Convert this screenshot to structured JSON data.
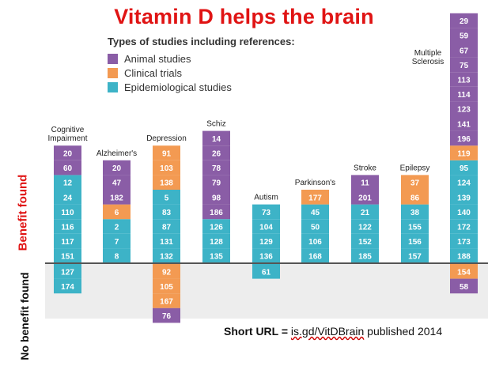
{
  "chart_data": {
    "type": "bar",
    "title": "Vitamin D helps the brain",
    "legend_title": "Types of studies including references:",
    "legend": [
      {
        "key": "animal",
        "label": "Animal studies",
        "color": "#8a5da6"
      },
      {
        "key": "clinical",
        "label": "Clinical trials",
        "color": "#f39a52"
      },
      {
        "key": "epi",
        "label": "Epidemiological studies",
        "color": "#3db3c7"
      }
    ],
    "ylabel_positive": "Benefit found",
    "ylabel_negative": "No benefit found",
    "categories": [
      {
        "name": "Cognitive Impairment",
        "benefit": [
          {
            "ref": "151",
            "type": "epi"
          },
          {
            "ref": "117",
            "type": "epi"
          },
          {
            "ref": "116",
            "type": "epi"
          },
          {
            "ref": "110",
            "type": "epi"
          },
          {
            "ref": "24",
            "type": "epi"
          },
          {
            "ref": "12",
            "type": "epi"
          },
          {
            "ref": "60",
            "type": "animal"
          },
          {
            "ref": "20",
            "type": "animal"
          }
        ],
        "no_benefit": [
          {
            "ref": "127",
            "type": "epi"
          },
          {
            "ref": "174",
            "type": "epi"
          }
        ]
      },
      {
        "name": "Alzheimer's",
        "benefit": [
          {
            "ref": "8",
            "type": "epi"
          },
          {
            "ref": "7",
            "type": "epi"
          },
          {
            "ref": "2",
            "type": "epi"
          },
          {
            "ref": "6",
            "type": "clinical"
          },
          {
            "ref": "182",
            "type": "animal"
          },
          {
            "ref": "47",
            "type": "animal"
          },
          {
            "ref": "20",
            "type": "animal"
          }
        ],
        "no_benefit": []
      },
      {
        "name": "Depression",
        "benefit": [
          {
            "ref": "132",
            "type": "epi"
          },
          {
            "ref": "131",
            "type": "epi"
          },
          {
            "ref": "87",
            "type": "epi"
          },
          {
            "ref": "83",
            "type": "epi"
          },
          {
            "ref": "5",
            "type": "epi"
          },
          {
            "ref": "138",
            "type": "clinical"
          },
          {
            "ref": "103",
            "type": "clinical"
          },
          {
            "ref": "91",
            "type": "clinical"
          }
        ],
        "no_benefit": [
          {
            "ref": "92",
            "type": "clinical"
          },
          {
            "ref": "105",
            "type": "clinical"
          },
          {
            "ref": "167",
            "type": "clinical"
          },
          {
            "ref": "76",
            "type": "animal"
          }
        ]
      },
      {
        "name": "Schiz",
        "benefit": [
          {
            "ref": "135",
            "type": "epi"
          },
          {
            "ref": "128",
            "type": "epi"
          },
          {
            "ref": "126",
            "type": "epi"
          },
          {
            "ref": "186",
            "type": "animal"
          },
          {
            "ref": "98",
            "type": "animal"
          },
          {
            "ref": "79",
            "type": "animal"
          },
          {
            "ref": "78",
            "type": "animal"
          },
          {
            "ref": "26",
            "type": "animal"
          },
          {
            "ref": "14",
            "type": "animal"
          }
        ],
        "no_benefit": []
      },
      {
        "name": "Autism",
        "benefit": [
          {
            "ref": "136",
            "type": "epi"
          },
          {
            "ref": "129",
            "type": "epi"
          },
          {
            "ref": "104",
            "type": "epi"
          },
          {
            "ref": "73",
            "type": "epi"
          }
        ],
        "no_benefit": [
          {
            "ref": "61",
            "type": "epi"
          }
        ]
      },
      {
        "name": "Parkinson's",
        "benefit": [
          {
            "ref": "168",
            "type": "epi"
          },
          {
            "ref": "106",
            "type": "epi"
          },
          {
            "ref": "50",
            "type": "epi"
          },
          {
            "ref": "45",
            "type": "epi"
          },
          {
            "ref": "177",
            "type": "clinical"
          }
        ],
        "no_benefit": []
      },
      {
        "name": "Stroke",
        "benefit": [
          {
            "ref": "185",
            "type": "epi"
          },
          {
            "ref": "152",
            "type": "epi"
          },
          {
            "ref": "122",
            "type": "epi"
          },
          {
            "ref": "21",
            "type": "epi"
          },
          {
            "ref": "201",
            "type": "animal"
          },
          {
            "ref": "11",
            "type": "animal"
          }
        ],
        "no_benefit": []
      },
      {
        "name": "Epilepsy",
        "benefit": [
          {
            "ref": "157",
            "type": "epi"
          },
          {
            "ref": "156",
            "type": "epi"
          },
          {
            "ref": "155",
            "type": "epi"
          },
          {
            "ref": "38",
            "type": "epi"
          },
          {
            "ref": "86",
            "type": "clinical"
          },
          {
            "ref": "37",
            "type": "clinical"
          }
        ],
        "no_benefit": []
      },
      {
        "name": "Multiple Sclerosis",
        "benefit": [
          {
            "ref": "188",
            "type": "epi"
          },
          {
            "ref": "173",
            "type": "epi"
          },
          {
            "ref": "172",
            "type": "epi"
          },
          {
            "ref": "140",
            "type": "epi"
          },
          {
            "ref": "139",
            "type": "epi"
          },
          {
            "ref": "124",
            "type": "epi"
          },
          {
            "ref": "95",
            "type": "epi"
          },
          {
            "ref": "119",
            "type": "clinical"
          },
          {
            "ref": "196",
            "type": "animal"
          },
          {
            "ref": "141",
            "type": "animal"
          },
          {
            "ref": "123",
            "type": "animal"
          },
          {
            "ref": "114",
            "type": "animal"
          },
          {
            "ref": "113",
            "type": "animal"
          },
          {
            "ref": "75",
            "type": "animal"
          },
          {
            "ref": "67",
            "type": "animal"
          },
          {
            "ref": "59",
            "type": "animal"
          },
          {
            "ref": "29",
            "type": "animal"
          }
        ],
        "no_benefit": [
          {
            "ref": "154",
            "type": "clinical"
          },
          {
            "ref": "58",
            "type": "animal"
          }
        ]
      }
    ]
  },
  "footer": {
    "label": "Short URL =",
    "url": "is.gd/VitDBrain",
    "suffix": "published 2014"
  }
}
